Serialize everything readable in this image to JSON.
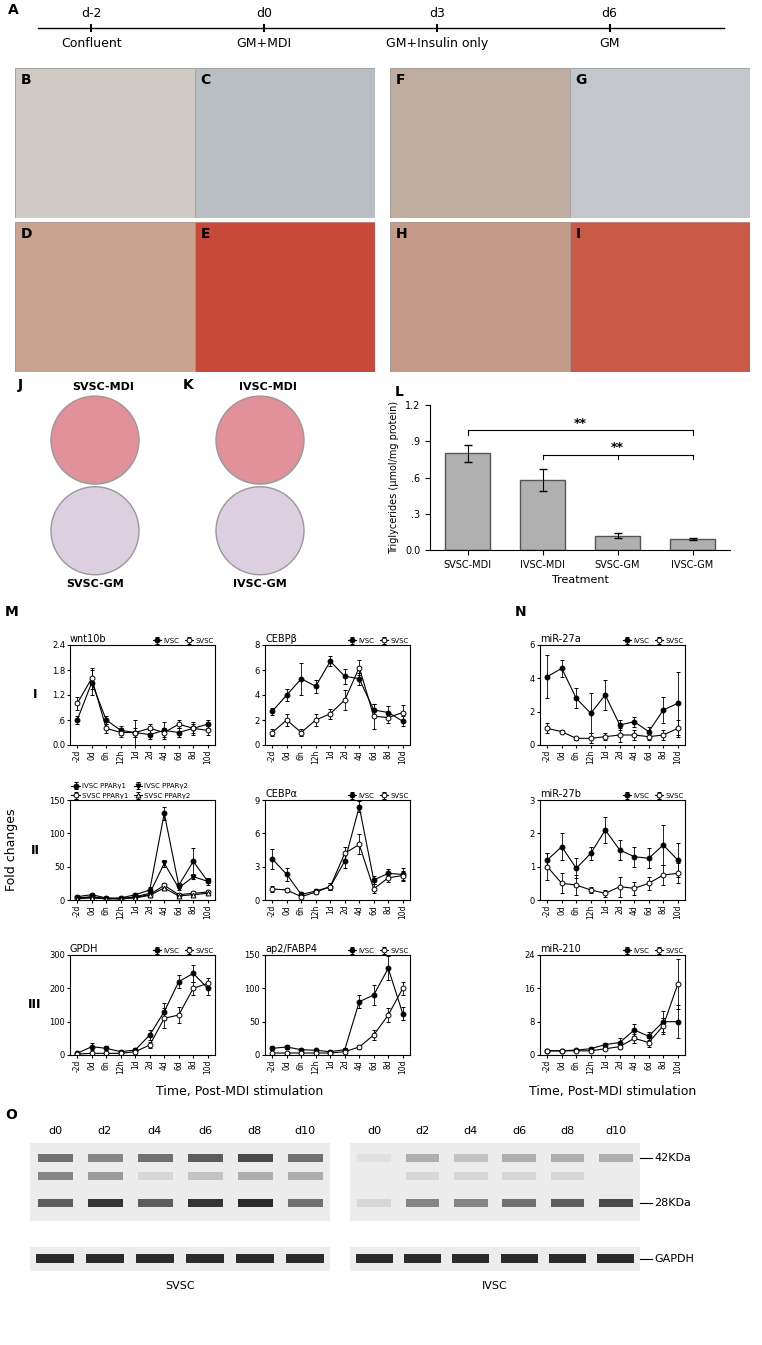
{
  "panel_A": {
    "label": "A",
    "times": [
      "d-2",
      "d0",
      "d3",
      "d6"
    ],
    "steps": [
      "Confluent",
      "GM+MDI",
      "GM+Insulin only",
      "GM"
    ]
  },
  "images": [
    [
      {
        "label": "B",
        "color": "#cfcac3"
      },
      {
        "label": "C",
        "color": "#b9bec3"
      },
      {
        "label": "F",
        "color": "#bfae9f"
      },
      {
        "label": "G",
        "color": "#c3c7cb"
      }
    ],
    [
      {
        "label": "D",
        "color": "#c9a38f"
      },
      {
        "label": "E",
        "color": "#c8483a"
      },
      {
        "label": "H",
        "color": "#c49a88"
      },
      {
        "label": "I",
        "color": "#c95a48"
      }
    ]
  ],
  "dishes": {
    "top_color": "#e2909a",
    "bottom_color": "#dccfe0",
    "panels": [
      {
        "label": "J",
        "top": "SVSC-MDI",
        "bottom": "SVSC-GM"
      },
      {
        "label": "K",
        "top": "IVSC-MDI",
        "bottom": "IVSC-GM"
      }
    ]
  },
  "panel_L": {
    "label": "L"
  },
  "panel_M": {
    "label": "M",
    "rows": [
      "I",
      "II",
      "III"
    ],
    "ylabel": "Fold changes",
    "xlabel": "Time, Post-MDI stimulation"
  },
  "panel_N": {
    "label": "N",
    "xlabel": "Time, Post-MDI stimulation"
  },
  "chart_data": [
    {
      "type": "bar",
      "categories": [
        "SVSC-MDI",
        "IVSC-MDI",
        "SVSC-GM",
        "IVSC-GM"
      ],
      "values": [
        0.8,
        0.58,
        0.12,
        0.09
      ],
      "errors": [
        0.07,
        0.09,
        0.02,
        0.01
      ],
      "color": "#b0b0b0",
      "xlabel": "Treatment",
      "ylabel": "Triglycerides (µmol/mg protein)",
      "ylim": [
        0,
        1.2
      ],
      "yticks": [
        {
          "value": 0,
          "label": "0.0"
        },
        {
          "value": 0.3,
          "label": ".3"
        },
        {
          "value": 0.6,
          "label": ".6"
        },
        {
          "value": 0.9,
          "label": ".9"
        },
        1.2
      ],
      "annotations": [
        {
          "text": "**",
          "between": [
            "IVSC-MDI",
            "SVSC-GM",
            "IVSC-GM"
          ]
        },
        {
          "text": "**",
          "between": [
            "SVSC-MDI",
            "IVSC-GM"
          ]
        }
      ]
    },
    {
      "type": "line",
      "title": "wnt10b",
      "legend": "upper right",
      "categories": [
        "-2d",
        "0d",
        "6h",
        "12h",
        "1d",
        "2d",
        "4d",
        "6d",
        "8d",
        "10d"
      ],
      "ylim": [
        0,
        2.4
      ],
      "yticks": [
        {
          "value": 0,
          "label": "0.0"
        },
        {
          "value": 0.6,
          "label": ".6"
        },
        1.2,
        1.8,
        2.4
      ],
      "series": [
        {
          "name": "IVSC",
          "color": "#000000",
          "marker": "filled circle",
          "values": [
            0.6,
            1.5,
            0.6,
            0.35,
            0.3,
            0.25,
            0.35,
            0.3,
            0.4,
            0.5
          ],
          "errors": [
            0.1,
            0.3,
            0.1,
            0.1,
            0.1,
            0.1,
            0.2,
            0.1,
            0.1,
            0.1
          ]
        },
        {
          "name": "SVSC",
          "color": "#000000",
          "marker": "open circle",
          "values": [
            1.0,
            1.6,
            0.4,
            0.3,
            0.3,
            0.4,
            0.3,
            0.5,
            0.4,
            0.35
          ],
          "errors": [
            0.15,
            0.25,
            0.1,
            0.1,
            0.3,
            0.1,
            0.1,
            0.1,
            0.15,
            0.1
          ]
        }
      ]
    },
    {
      "type": "line",
      "title": "CEBPβ",
      "legend": "upper right",
      "categories": [
        "-2d",
        "0d",
        "6h",
        "12h",
        "1d",
        "2d",
        "4d",
        "6d",
        "8d",
        "10d"
      ],
      "ylim": [
        0,
        8
      ],
      "yticks": [
        0,
        2,
        4,
        6,
        8
      ],
      "series": [
        {
          "name": "IVSC",
          "color": "#000000",
          "marker": "filled circle",
          "values": [
            2.7,
            4.0,
            5.3,
            4.7,
            6.7,
            5.5,
            5.3,
            2.8,
            2.6,
            1.9
          ],
          "errors": [
            0.3,
            0.5,
            1.3,
            0.5,
            0.4,
            0.6,
            0.5,
            0.5,
            0.5,
            0.4
          ]
        },
        {
          "name": "SVSC",
          "color": "#000000",
          "marker": "open circle",
          "values": [
            1.0,
            2.0,
            1.0,
            2.0,
            2.5,
            3.6,
            6.2,
            2.3,
            2.2,
            2.6
          ],
          "errors": [
            0.3,
            0.5,
            0.3,
            0.5,
            0.4,
            0.8,
            0.6,
            1.0,
            0.4,
            0.6
          ]
        }
      ]
    },
    {
      "type": "line",
      "legend": "upper left",
      "categories": [
        "-2d",
        "0d",
        "6h",
        "12h",
        "1d",
        "2d",
        "4d",
        "6d",
        "8d",
        "10d"
      ],
      "ylim": [
        0,
        150
      ],
      "yticks": [
        0,
        50,
        100,
        150
      ],
      "series": [
        {
          "name": "IVSC PPARγ1",
          "color": "#000000",
          "marker": "filled circle",
          "values": [
            5,
            8,
            3,
            3,
            8,
            15,
            130,
            22,
            58,
            28
          ],
          "errors": [
            1,
            3,
            1,
            1,
            2,
            4,
            10,
            4,
            20,
            5
          ]
        },
        {
          "name": "SVSC PPARγ1",
          "color": "#000000",
          "marker": "open circle",
          "values": [
            3,
            4,
            2,
            2,
            4,
            8,
            22,
            8,
            10,
            12
          ],
          "errors": [
            1,
            1,
            1,
            1,
            1,
            2,
            4,
            2,
            3,
            2
          ]
        },
        {
          "name": "IVSC PPARγ2",
          "color": "#000000",
          "marker": "filled triangle_down",
          "values": [
            3,
            5,
            2,
            2,
            5,
            10,
            55,
            18,
            35,
            28
          ],
          "errors": [
            1,
            1,
            1,
            1,
            1,
            2,
            5,
            3,
            4,
            3
          ]
        },
        {
          "name": "SVSC PPARγ2",
          "color": "#000000",
          "marker": "open triangle_up",
          "values": [
            2,
            3,
            2,
            2,
            3,
            7,
            18,
            6,
            8,
            10
          ],
          "errors": [
            1,
            1,
            1,
            1,
            1,
            1,
            3,
            2,
            2,
            2
          ]
        }
      ]
    },
    {
      "type": "line",
      "title": "CEBPα",
      "legend": "upper right",
      "categories": [
        "-2d",
        "0d",
        "6h",
        "12h",
        "1d",
        "2d",
        "4d",
        "6d",
        "8d",
        "10d"
      ],
      "ylim": [
        0,
        9
      ],
      "yticks": [
        0,
        3,
        6,
        9
      ],
      "series": [
        {
          "name": "IVSC",
          "color": "#000000",
          "marker": "filled circle",
          "values": [
            3.7,
            2.3,
            0.5,
            0.8,
            1.2,
            3.5,
            8.4,
            1.8,
            2.4,
            2.3
          ],
          "errors": [
            0.9,
            0.6,
            0.2,
            0.2,
            0.3,
            0.6,
            0.5,
            0.4,
            0.4,
            0.6
          ]
        },
        {
          "name": "SVSC",
          "color": "#000000",
          "marker": "open circle",
          "values": [
            1.0,
            0.9,
            0.3,
            0.7,
            1.2,
            4.2,
            5.0,
            1.0,
            2.0,
            2.2
          ],
          "errors": [
            0.3,
            0.2,
            0.1,
            0.2,
            0.3,
            0.6,
            0.9,
            0.4,
            0.4,
            0.4
          ]
        }
      ]
    },
    {
      "type": "line",
      "title": "GPDH",
      "legend": "upper right",
      "categories": [
        "-2d",
        "0d",
        "6h",
        "12h",
        "1d",
        "2d",
        "4d",
        "6d",
        "8d",
        "10d"
      ],
      "ylim": [
        0,
        300
      ],
      "yticks": [
        0,
        100,
        200,
        300
      ],
      "series": [
        {
          "name": "IVSC",
          "color": "#000000",
          "marker": "filled circle",
          "values": [
            5,
            25,
            20,
            10,
            15,
            60,
            130,
            220,
            245,
            200
          ],
          "errors": [
            5,
            10,
            8,
            5,
            5,
            15,
            25,
            20,
            25,
            20
          ]
        },
        {
          "name": "SVSC",
          "color": "#000000",
          "marker": "open circle",
          "values": [
            3,
            5,
            5,
            5,
            10,
            30,
            110,
            120,
            200,
            215
          ],
          "errors": [
            2,
            3,
            3,
            3,
            5,
            10,
            30,
            25,
            20,
            15
          ]
        }
      ]
    },
    {
      "type": "line",
      "title": "ap2/FABP4",
      "legend": "upper right",
      "categories": [
        "-2d",
        "0d",
        "6h",
        "12h",
        "1d",
        "2d",
        "4d",
        "6d",
        "8d",
        "10d"
      ],
      "ylim": [
        0,
        150
      ],
      "yticks": [
        0,
        50,
        100,
        150
      ],
      "series": [
        {
          "name": "IVSC",
          "color": "#000000",
          "marker": "filled circle",
          "values": [
            10,
            12,
            8,
            7,
            5,
            8,
            80,
            90,
            130,
            62
          ],
          "errors": [
            3,
            3,
            2,
            2,
            2,
            3,
            10,
            15,
            18,
            10
          ]
        },
        {
          "name": "SVSC",
          "color": "#000000",
          "marker": "open circle",
          "values": [
            3,
            3,
            3,
            3,
            3,
            5,
            12,
            30,
            60,
            100
          ],
          "errors": [
            1,
            1,
            1,
            1,
            1,
            2,
            3,
            8,
            10,
            10
          ]
        }
      ]
    },
    {
      "type": "line",
      "title": "miR-27a",
      "legend": "upper right",
      "categories": [
        "-2d",
        "0d",
        "6h",
        "12h",
        "1d",
        "2d",
        "4d",
        "6d",
        "8d",
        "10d"
      ],
      "ylim": [
        0,
        6
      ],
      "yticks": [
        0,
        2,
        4,
        6
      ],
      "series": [
        {
          "name": "IVSC",
          "color": "#000000",
          "marker": "filled circle",
          "values": [
            4.1,
            4.6,
            2.8,
            1.9,
            3.0,
            1.2,
            1.4,
            0.8,
            2.1,
            2.5
          ],
          "errors": [
            1.3,
            0.5,
            0.6,
            1.2,
            0.9,
            0.3,
            0.3,
            0.3,
            0.8,
            1.9
          ]
        },
        {
          "name": "SVSC",
          "color": "#000000",
          "marker": "open circle",
          "values": [
            1.0,
            0.8,
            0.4,
            0.4,
            0.5,
            0.6,
            0.6,
            0.5,
            0.6,
            1.0
          ],
          "errors": [
            0.3,
            0.1,
            0.1,
            0.3,
            0.2,
            0.4,
            0.3,
            0.2,
            0.3,
            0.5
          ]
        }
      ]
    },
    {
      "type": "line",
      "title": "miR-27b",
      "legend": "upper right",
      "categories": [
        "-2d",
        "0d",
        "6h",
        "12h",
        "1d",
        "2d",
        "4d",
        "6d",
        "8d",
        "10d"
      ],
      "ylim": [
        0,
        3
      ],
      "yticks": [
        0,
        1,
        2,
        3
      ],
      "series": [
        {
          "name": "IVSC",
          "color": "#000000",
          "marker": "filled circle",
          "values": [
            1.2,
            1.6,
            0.95,
            1.4,
            2.1,
            1.5,
            1.3,
            1.25,
            1.65,
            1.2
          ],
          "errors": [
            0.2,
            0.4,
            0.3,
            0.2,
            0.4,
            0.3,
            0.3,
            0.3,
            0.6,
            0.5
          ]
        },
        {
          "name": "SVSC",
          "color": "#000000",
          "marker": "open circle",
          "values": [
            1.0,
            0.5,
            0.45,
            0.3,
            0.2,
            0.4,
            0.35,
            0.5,
            0.75,
            0.8
          ],
          "errors": [
            0.4,
            0.3,
            0.3,
            0.1,
            0.1,
            0.3,
            0.2,
            0.2,
            0.3,
            0.3
          ]
        }
      ]
    },
    {
      "type": "line",
      "title": "miR-210",
      "legend": "upper right",
      "categories": [
        "-2d",
        "0d",
        "6h",
        "12h",
        "1d",
        "2d",
        "4d",
        "6d",
        "8d",
        "10d"
      ],
      "ylim": [
        0,
        24
      ],
      "yticks": [
        0,
        8,
        16,
        24
      ],
      "series": [
        {
          "name": "IVSC",
          "color": "#000000",
          "marker": "filled circle",
          "values": [
            1,
            1,
            1.2,
            1.5,
            2.5,
            3,
            6,
            4.5,
            8,
            8
          ],
          "errors": [
            0.3,
            0.3,
            0.3,
            0.4,
            0.5,
            1,
            1.5,
            1,
            2.5,
            4
          ]
        },
        {
          "name": "SVSC",
          "color": "#000000",
          "marker": "open circle",
          "values": [
            1,
            1,
            1,
            1,
            1.5,
            2,
            4,
            3,
            7,
            17
          ],
          "errors": [
            0.3,
            0.3,
            0.3,
            0.3,
            0.4,
            0.6,
            1,
            1,
            2,
            6
          ]
        }
      ]
    }
  ],
  "blot": {
    "label": "O",
    "lanes": [
      "d0",
      "d2",
      "d4",
      "d6",
      "d8",
      "d10"
    ],
    "band_labels": [
      "42KDa",
      null,
      "28KDa"
    ],
    "loading_label": "GAPDH",
    "groups": [
      {
        "name": "SVSC",
        "bands": [
          [
            0.6,
            0.5,
            0.6,
            0.7,
            0.8,
            0.6
          ],
          [
            0.5,
            0.4,
            0.1,
            0.2,
            0.3,
            0.3
          ],
          [
            0.7,
            0.9,
            0.7,
            0.9,
            0.95,
            0.6
          ]
        ],
        "loading": [
          0.95,
          0.95,
          0.95,
          0.95,
          0.95,
          0.95
        ]
      },
      {
        "name": "IVSC",
        "bands": [
          [
            0.05,
            0.3,
            0.2,
            0.3,
            0.3,
            0.3
          ],
          [
            0.0,
            0.1,
            0.1,
            0.1,
            0.1,
            0.0
          ],
          [
            0.1,
            0.5,
            0.5,
            0.6,
            0.7,
            0.8
          ]
        ],
        "loading": [
          0.95,
          0.95,
          0.95,
          0.95,
          0.95,
          0.95
        ]
      }
    ]
  }
}
